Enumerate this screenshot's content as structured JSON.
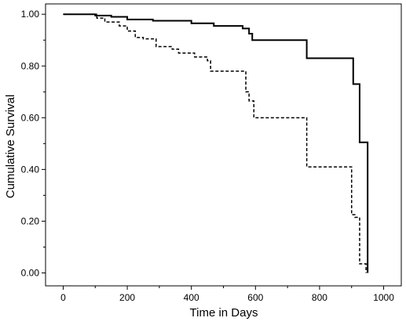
{
  "chart_data": {
    "type": "line",
    "title": "",
    "xlabel": "Time in Days",
    "ylabel": "Cumulative Survival",
    "xlim": [
      -55,
      1055
    ],
    "ylim": [
      -0.05,
      1.04
    ],
    "x_ticks": [
      0,
      200,
      400,
      600,
      800,
      1000
    ],
    "x_tick_labels": [
      "0",
      "200",
      "400",
      "600",
      "800",
      "1000"
    ],
    "y_ticks": [
      0.0,
      0.2,
      0.4,
      0.6,
      0.8,
      1.0
    ],
    "y_tick_labels": [
      "0.00",
      "0.20",
      "0.40",
      "0.60",
      "0.80",
      "1.00"
    ],
    "step": true,
    "grid": false,
    "series": [
      {
        "style": "solid",
        "x": [
          0,
          100,
          150,
          200,
          280,
          400,
          470,
          560,
          580,
          590,
          760,
          905,
          925,
          950,
          950
        ],
        "y": [
          1.0,
          0.995,
          0.99,
          0.98,
          0.975,
          0.965,
          0.955,
          0.945,
          0.925,
          0.9,
          0.83,
          0.73,
          0.505,
          0.505,
          0.0
        ]
      },
      {
        "style": "dashed",
        "x": [
          0,
          105,
          130,
          175,
          200,
          225,
          250,
          290,
          340,
          360,
          410,
          450,
          460,
          570,
          580,
          595,
          760,
          900,
          910,
          925,
          940,
          945
        ],
        "y": [
          1.0,
          0.985,
          0.97,
          0.955,
          0.935,
          0.91,
          0.905,
          0.875,
          0.865,
          0.85,
          0.835,
          0.82,
          0.78,
          0.7,
          0.665,
          0.6,
          0.41,
          0.225,
          0.215,
          0.035,
          0.035,
          0.0
        ]
      }
    ]
  }
}
